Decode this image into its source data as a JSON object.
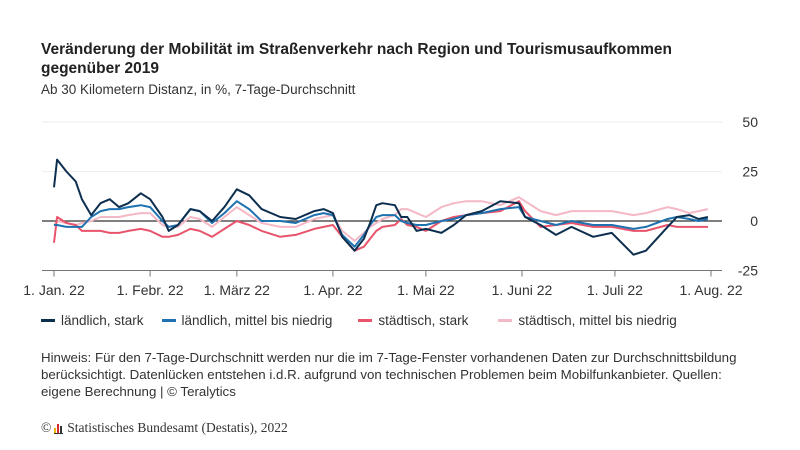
{
  "title": "Veränderung der Mobilität im Straßenverkehr nach Region und Tourismusaufkommen gegenüber 2019",
  "subtitle": "Ab 30 Kilometern Distanz, in %, 7-Tage-Durchschnitt",
  "note": "Hinweis: Für den 7-Tage-Durchschnitt werden nur die im 7-Tage-Fenster vorhandenen Daten zur Durchschnittsbildung berücksichtigt. Datenlücken entstehen i.d.R. aufgrund von technischen Problemen beim Mobilfunkanbieter. Quellen: eigene Berechnung | © Teralytics",
  "footer": {
    "copyright": "©",
    "text": "Statistisches Bundesamt (Destatis), 2022",
    "logo_colors": [
      "#e8b400",
      "#d62b2b",
      "#333333"
    ]
  },
  "chart_data": {
    "type": "line",
    "title": "Veränderung der Mobilität im Straßenverkehr nach Region und Tourismusaufkommen gegenüber 2019",
    "xlabel": "",
    "ylabel": "",
    "xlim": [
      "2022-01-01",
      "2022-08-01"
    ],
    "ylim": [
      -25,
      50
    ],
    "yticks": [
      50,
      25,
      0,
      -25
    ],
    "xticks": [
      {
        "date": "2022-01-01",
        "label": "1. Jan. 22"
      },
      {
        "date": "2022-02-01",
        "label": "1. Febr. 22"
      },
      {
        "date": "2022-03-01",
        "label": "1. März 22"
      },
      {
        "date": "2022-04-01",
        "label": "1. Apr. 22"
      },
      {
        "date": "2022-05-01",
        "label": "1. Mai 22"
      },
      {
        "date": "2022-06-01",
        "label": "1. Juni 22"
      },
      {
        "date": "2022-07-01",
        "label": "1. Juli 22"
      },
      {
        "date": "2022-08-01",
        "label": "1. Aug. 22"
      }
    ],
    "grid": true,
    "yaxis_position": "right",
    "legend_position": "bottom",
    "x": [
      "2022-01-01",
      "2022-01-02",
      "2022-01-05",
      "2022-01-08",
      "2022-01-10",
      "2022-01-13",
      "2022-01-16",
      "2022-01-19",
      "2022-01-22",
      "2022-01-25",
      "2022-01-29",
      "2022-02-01",
      "2022-02-05",
      "2022-02-07",
      "2022-02-10",
      "2022-02-14",
      "2022-02-17",
      "2022-02-21",
      "2022-02-25",
      "2022-03-01",
      "2022-03-05",
      "2022-03-09",
      "2022-03-15",
      "2022-03-20",
      "2022-03-26",
      "2022-03-29",
      "2022-04-01",
      "2022-04-04",
      "2022-04-08",
      "2022-04-11",
      "2022-04-13",
      "2022-04-15",
      "2022-04-17",
      "2022-04-21",
      "2022-04-23",
      "2022-04-25",
      "2022-04-28",
      "2022-05-01",
      "2022-05-06",
      "2022-05-10",
      "2022-05-14",
      "2022-05-19",
      "2022-05-25",
      "2022-05-31",
      "2022-06-02",
      "2022-06-07",
      "2022-06-12",
      "2022-06-17",
      "2022-06-24",
      "2022-06-30",
      "2022-07-07",
      "2022-07-11",
      "2022-07-18",
      "2022-07-21",
      "2022-07-25",
      "2022-07-28",
      "2022-07-31"
    ],
    "series": [
      {
        "name": "ländlich, stark",
        "color": "#0d2f4f",
        "values": [
          17,
          31,
          25,
          20,
          11,
          3,
          9,
          11,
          7,
          9,
          14,
          11,
          2,
          -5,
          -2,
          6,
          5,
          0,
          7,
          16,
          13,
          6,
          2,
          1,
          5,
          6,
          4,
          -8,
          -15,
          -9,
          -1,
          8,
          9,
          8,
          2,
          2,
          -5,
          -4,
          -6,
          -2,
          3,
          5,
          10,
          9,
          2,
          -2,
          -7,
          -3,
          -8,
          -6,
          -17,
          -15,
          -3,
          2,
          3,
          1,
          2
        ]
      },
      {
        "name": "ländlich, mittel bis niedrig",
        "color": "#1f72b0",
        "values": [
          -2,
          -2,
          -3,
          -3,
          -3,
          2,
          5,
          6,
          6,
          7,
          8,
          7,
          0,
          -3,
          -2,
          6,
          5,
          -1,
          4,
          10,
          6,
          0,
          0,
          -1,
          3,
          4,
          3,
          -7,
          -13,
          -7,
          -2,
          2,
          3,
          3,
          0,
          -1,
          -2,
          -2,
          0,
          1,
          3,
          4,
          6,
          7,
          2,
          0,
          -2,
          0,
          -2,
          -2,
          -4,
          -3,
          1,
          2,
          1,
          0,
          1
        ]
      },
      {
        "name": "städtisch, stark",
        "color": "#e8546c",
        "values": [
          -11,
          2,
          -1,
          -2,
          -5,
          -5,
          -5,
          -6,
          -6,
          -5,
          -4,
          -5,
          -8,
          -8,
          -7,
          -4,
          -5,
          -8,
          -4,
          0,
          -2,
          -5,
          -8,
          -7,
          -4,
          -3,
          -2,
          -8,
          -15,
          -13,
          -9,
          -5,
          -3,
          -2,
          1,
          -2,
          -3,
          -5,
          0,
          2,
          3,
          4,
          5,
          10,
          5,
          -3,
          -2,
          -1,
          -3,
          -3,
          -5,
          -5,
          -2,
          -3,
          -3,
          -3,
          -3
        ]
      },
      {
        "name": "städtisch, mittel bis niedrig",
        "color": "#f4b8c6",
        "values": [
          -2,
          0,
          -1,
          -2,
          -1,
          0,
          2,
          2,
          2,
          3,
          4,
          4,
          -2,
          -3,
          -3,
          2,
          1,
          -3,
          2,
          7,
          3,
          -1,
          -3,
          -3,
          1,
          2,
          3,
          -5,
          -10,
          -6,
          -3,
          -1,
          1,
          3,
          6,
          6,
          4,
          2,
          7,
          9,
          10,
          10,
          8,
          12,
          10,
          5,
          3,
          5,
          5,
          5,
          3,
          4,
          7,
          6,
          4,
          5,
          6
        ]
      }
    ]
  }
}
